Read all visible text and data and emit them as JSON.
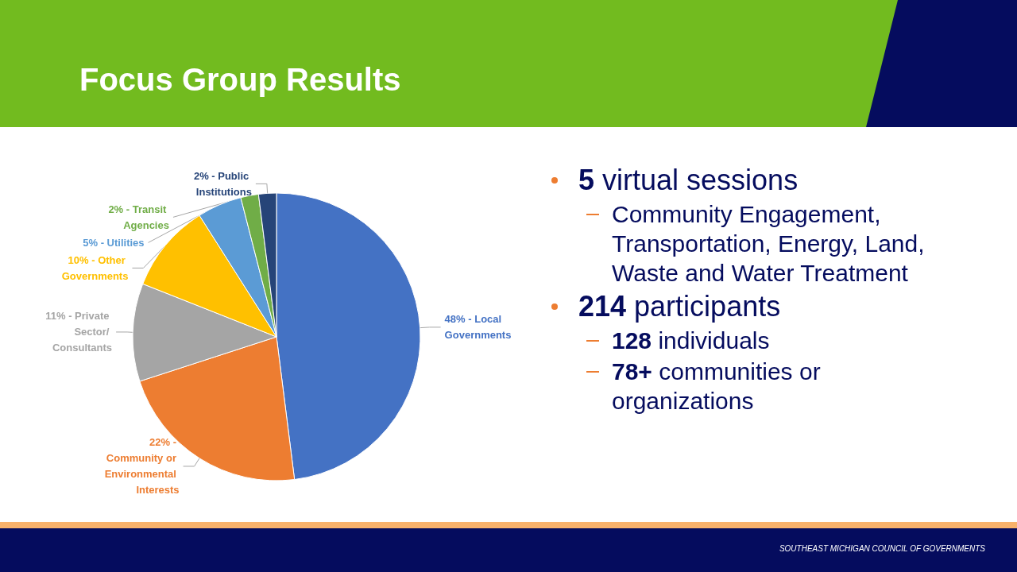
{
  "chart_data": {
    "type": "pie",
    "title": "Focus Group Results",
    "categories": [
      "48% - Local Governments",
      "22% - Community or Environmental Interests",
      "11% - Private Sector/ Consultants",
      "10% - Other Governments",
      "5% - Utilities",
      "2% - Transit Agencies",
      "2% - Public Institutions"
    ],
    "values": [
      48,
      22,
      11,
      10,
      5,
      2,
      2
    ],
    "colors": [
      "#4472c4",
      "#ed7d31",
      "#a5a5a5",
      "#ffc000",
      "#5b9bd5",
      "#70ad47",
      "#264478"
    ],
    "legend": false,
    "annotations": [
      "5 virtual sessions",
      "Community Engagement, Transportation, Energy, Land, Waste and Water Treatment",
      "214 participants",
      "128 individuals",
      "78+ communities or organizations",
      "SOUTHEAST MICHIGAN COUNCIL OF GOVERNMENTS"
    ]
  }
}
